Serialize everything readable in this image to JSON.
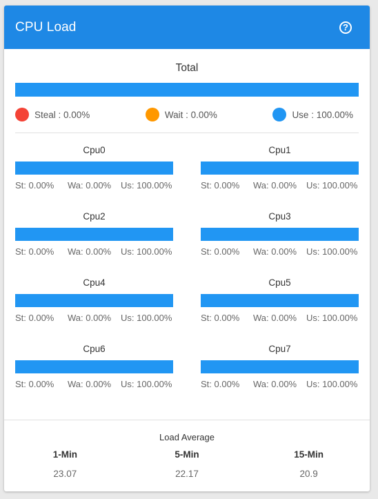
{
  "header": {
    "title": "CPU Load",
    "help_icon": "question-circle-icon",
    "help_glyph": "?"
  },
  "colors": {
    "accent": "#1e88e5",
    "steal": "#f44336",
    "wait": "#ff9800",
    "use": "#2196f3"
  },
  "total": {
    "title": "Total",
    "use_fraction": 1.0,
    "legend": {
      "steal": "Steal : 0.00%",
      "wait": "Wait : 0.00%",
      "use": "Use : 100.00%"
    }
  },
  "cpus": [
    {
      "name": "Cpu0",
      "st": "St: 0.00%",
      "wa": "Wa: 0.00%",
      "us": "Us: 100.00%",
      "use_fraction": 1.0
    },
    {
      "name": "Cpu1",
      "st": "St: 0.00%",
      "wa": "Wa: 0.00%",
      "us": "Us: 100.00%",
      "use_fraction": 1.0
    },
    {
      "name": "Cpu2",
      "st": "St: 0.00%",
      "wa": "Wa: 0.00%",
      "us": "Us: 100.00%",
      "use_fraction": 1.0
    },
    {
      "name": "Cpu3",
      "st": "St: 0.00%",
      "wa": "Wa: 0.00%",
      "us": "Us: 100.00%",
      "use_fraction": 1.0
    },
    {
      "name": "Cpu4",
      "st": "St: 0.00%",
      "wa": "Wa: 0.00%",
      "us": "Us: 100.00%",
      "use_fraction": 1.0
    },
    {
      "name": "Cpu5",
      "st": "St: 0.00%",
      "wa": "Wa: 0.00%",
      "us": "Us: 100.00%",
      "use_fraction": 1.0
    },
    {
      "name": "Cpu6",
      "st": "St: 0.00%",
      "wa": "Wa: 0.00%",
      "us": "Us: 100.00%",
      "use_fraction": 1.0
    },
    {
      "name": "Cpu7",
      "st": "St: 0.00%",
      "wa": "Wa: 0.00%",
      "us": "Us: 100.00%",
      "use_fraction": 1.0
    }
  ],
  "load_average": {
    "title": "Load Average",
    "items": [
      {
        "label": "1-Min",
        "value": "23.07"
      },
      {
        "label": "5-Min",
        "value": "22.17"
      },
      {
        "label": "15-Min",
        "value": "20.9"
      }
    ]
  }
}
